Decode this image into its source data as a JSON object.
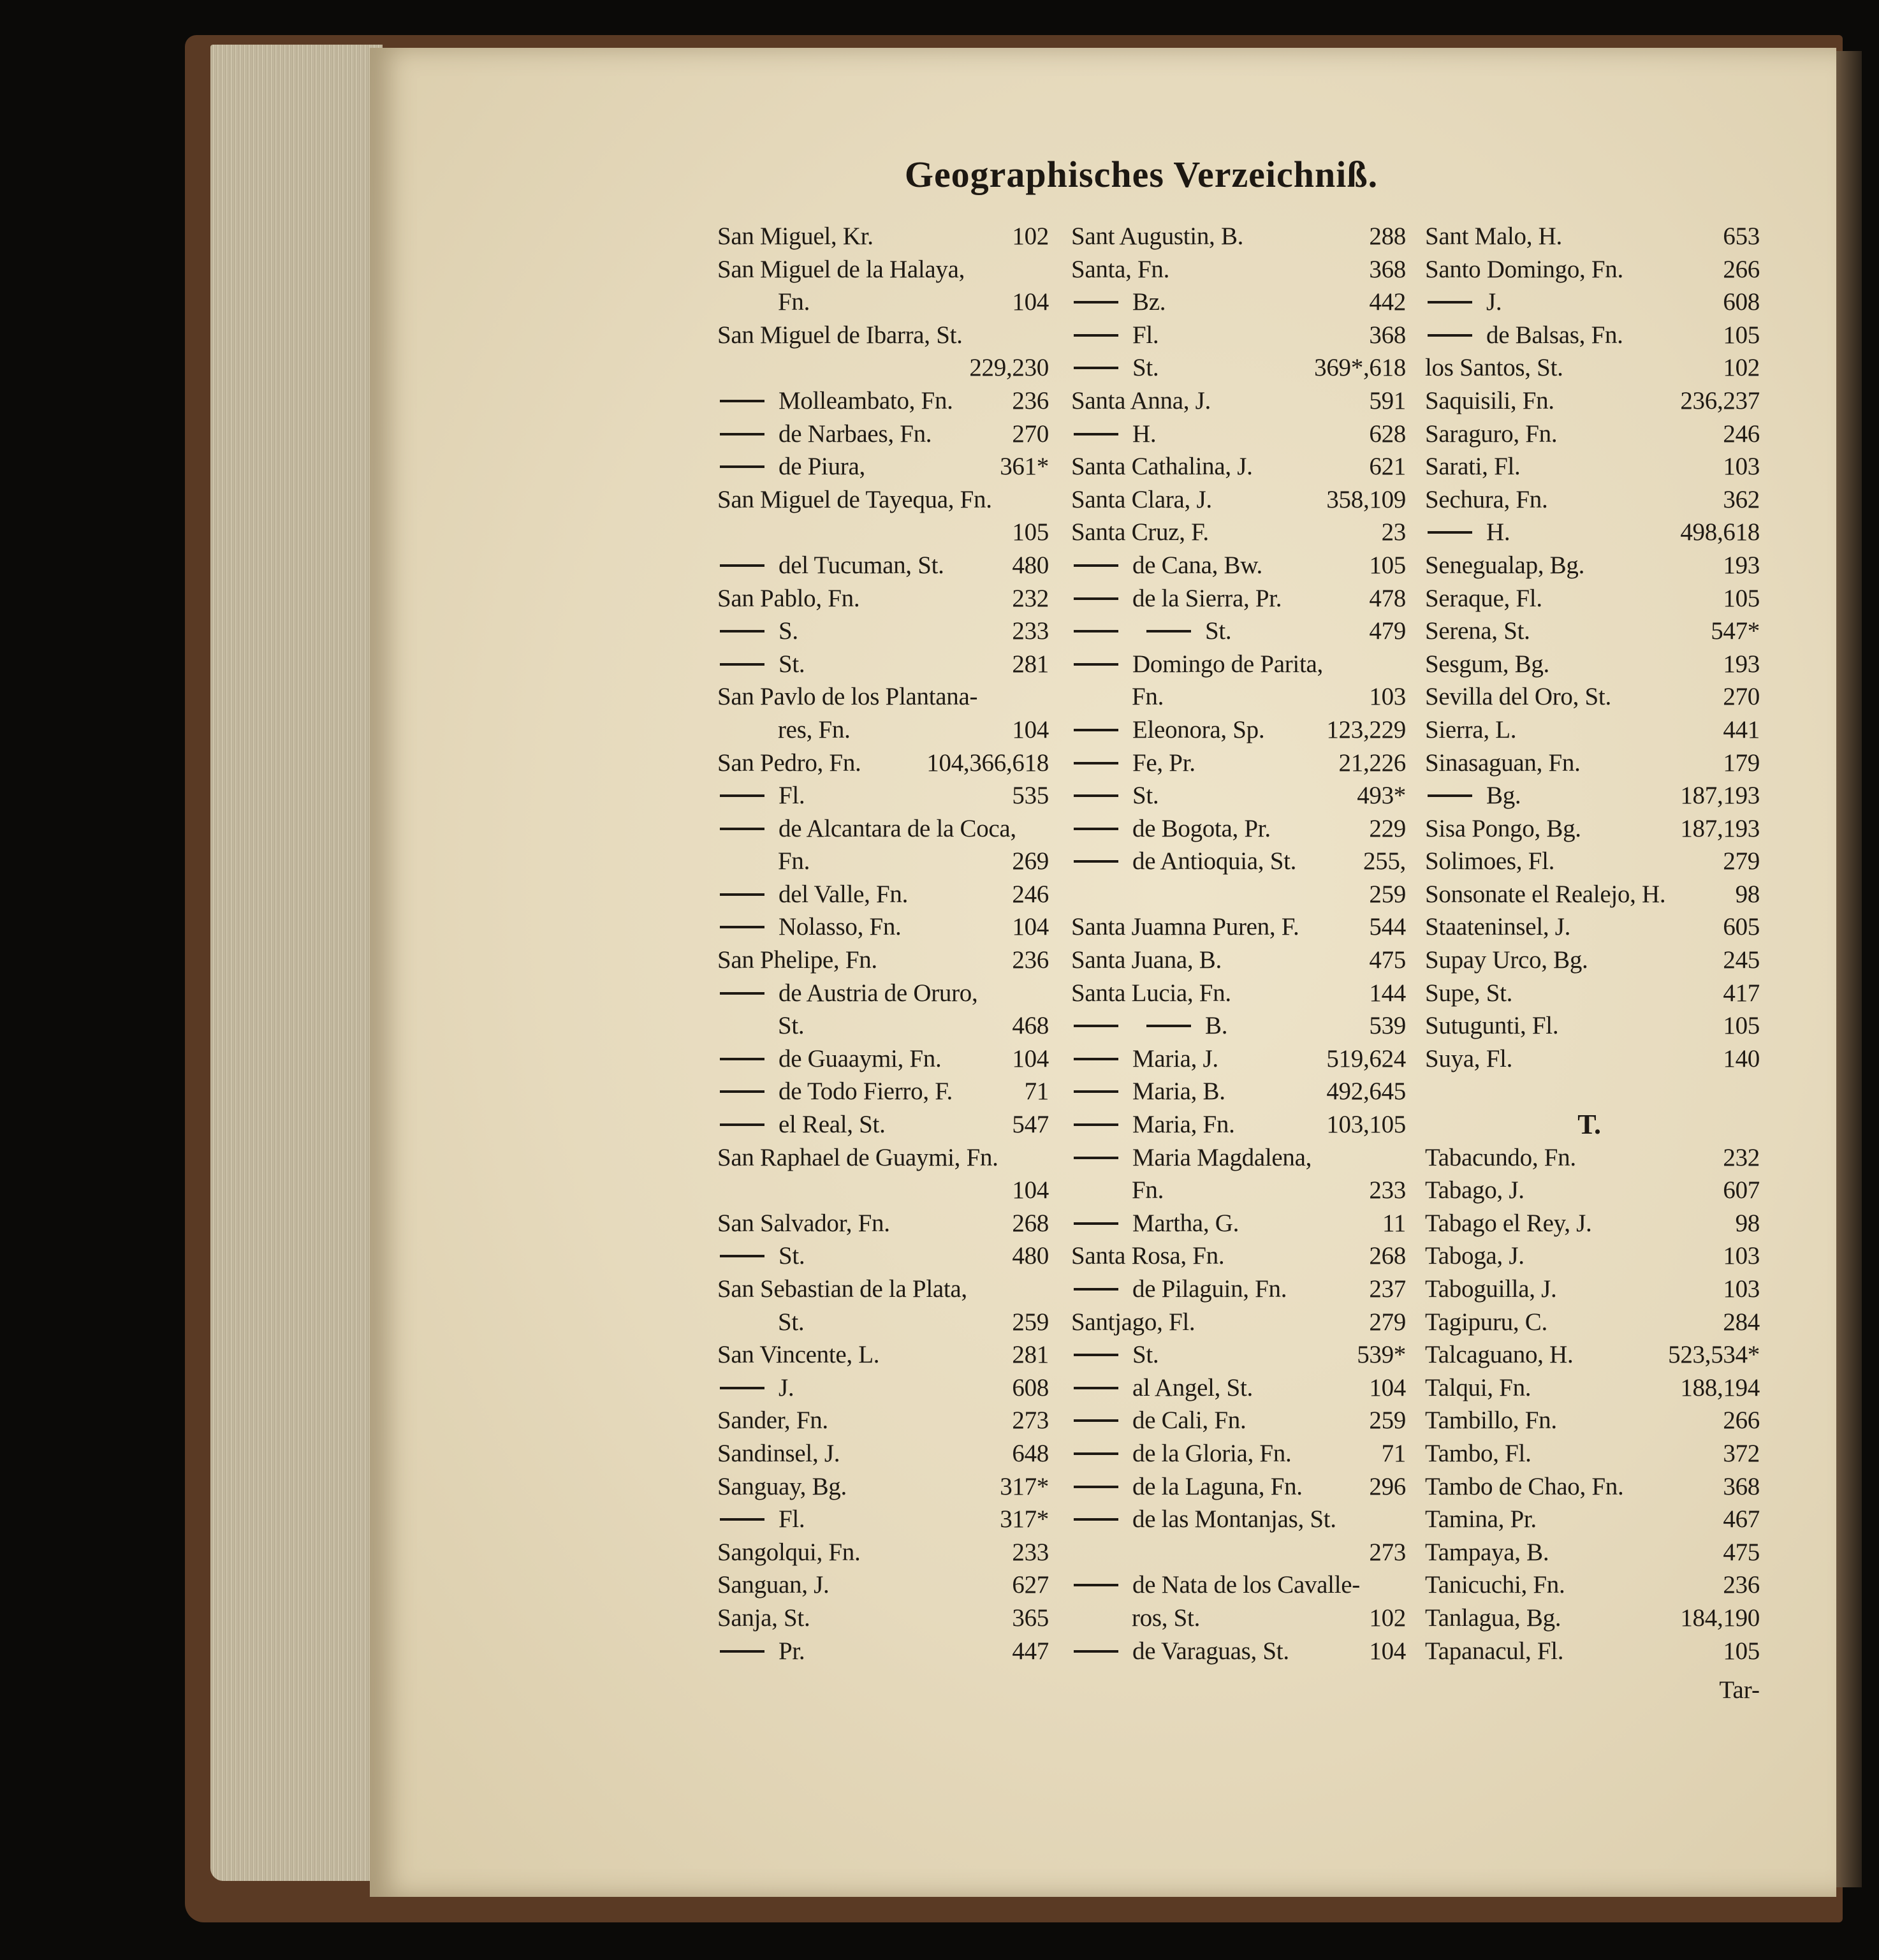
{
  "header": {
    "title": "Geographisches Verzeichniß."
  },
  "columns": [
    {
      "rows": [
        {
          "t": "San Miguel, Kr.",
          "p": "102"
        },
        {
          "t": "San Miguel de la Halaya,",
          "p": ""
        },
        {
          "c": 1,
          "t": "Fn.",
          "p": "104"
        },
        {
          "t": "San Miguel de Ibarra, St.",
          "p": ""
        },
        {
          "c": 1,
          "t": "",
          "p": "229,230"
        },
        {
          "d": 1,
          "t": "Molleambato, Fn.",
          "p": "236"
        },
        {
          "d": 1,
          "t": "de Narbaes, Fn.",
          "p": "270"
        },
        {
          "d": 1,
          "t": "de Piura,",
          "p": "361*"
        },
        {
          "t": "San Miguel de Tayequa, Fn.",
          "p": ""
        },
        {
          "c": 1,
          "t": "",
          "p": "105"
        },
        {
          "d": 1,
          "t": "del Tucuman, St.",
          "p": "480"
        },
        {
          "t": "San Pablo, Fn.",
          "p": "232"
        },
        {
          "d": 1,
          "t": "S.",
          "p": "233"
        },
        {
          "d": 1,
          "t": "St.",
          "p": "281"
        },
        {
          "t": "San Pavlo de los Plantana-",
          "p": ""
        },
        {
          "c": 1,
          "t": "res, Fn.",
          "p": "104"
        },
        {
          "t": "San Pedro, Fn.",
          "p": "104,366,618"
        },
        {
          "d": 1,
          "t": "Fl.",
          "p": "535"
        },
        {
          "d": 1,
          "t": "de Alcantara de la Coca,",
          "p": ""
        },
        {
          "c": 1,
          "t": "Fn.",
          "p": "269"
        },
        {
          "d": 1,
          "t": "del Valle, Fn.",
          "p": "246"
        },
        {
          "d": 1,
          "t": "Nolasso, Fn.",
          "p": "104"
        },
        {
          "t": "San Phelipe, Fn.",
          "p": "236"
        },
        {
          "d": 1,
          "t": "de Austria de Oruro,",
          "p": ""
        },
        {
          "c": 1,
          "t": "St.",
          "p": "468"
        },
        {
          "d": 1,
          "t": "de Guaaymi, Fn.",
          "p": "104"
        },
        {
          "d": 1,
          "t": "de Todo Fierro, F.",
          "p": "71"
        },
        {
          "d": 1,
          "t": "el Real, St.",
          "p": "547"
        },
        {
          "t": "San Raphael de Guaymi, Fn.",
          "p": ""
        },
        {
          "c": 1,
          "t": "",
          "p": "104"
        },
        {
          "t": "San Salvador, Fn.",
          "p": "268"
        },
        {
          "d": 1,
          "t": "St.",
          "p": "480"
        },
        {
          "t": "San Sebastian de la Plata,",
          "p": ""
        },
        {
          "c": 1,
          "t": "St.",
          "p": "259"
        },
        {
          "t": "San Vincente, L.",
          "p": "281"
        },
        {
          "d": 1,
          "t": "J.",
          "p": "608"
        },
        {
          "t": "Sander, Fn.",
          "p": "273"
        },
        {
          "t": "Sandinsel, J.",
          "p": "648"
        },
        {
          "t": "Sanguay, Bg.",
          "p": "317*"
        },
        {
          "d": 1,
          "t": "Fl.",
          "p": "317*"
        },
        {
          "t": "Sangolqui, Fn.",
          "p": "233"
        },
        {
          "t": "Sanguan, J.",
          "p": "627"
        },
        {
          "t": "Sanja, St.",
          "p": "365"
        },
        {
          "d": 1,
          "t": "Pr.",
          "p": "447"
        }
      ]
    },
    {
      "rows": [
        {
          "t": "Sant Augustin, B.",
          "p": "288"
        },
        {
          "t": "Santa, Fn.",
          "p": "368"
        },
        {
          "d": 1,
          "t": "Bz.",
          "p": "442"
        },
        {
          "d": 1,
          "t": "Fl.",
          "p": "368"
        },
        {
          "d": 1,
          "t": "St.",
          "p": "369*,618"
        },
        {
          "t": "Santa Anna, J.",
          "p": "591"
        },
        {
          "d": 1,
          "t": "H.",
          "p": "628"
        },
        {
          "t": "Santa Cathalina, J.",
          "p": "621"
        },
        {
          "t": "Santa Clara, J.",
          "p": "358,109"
        },
        {
          "t": "Santa Cruz, F.",
          "p": "23"
        },
        {
          "d": 1,
          "t": "de Cana, Bw.",
          "p": "105"
        },
        {
          "d": 1,
          "t": "de la Sierra, Pr.",
          "p": "478"
        },
        {
          "d": 2,
          "t": "St.",
          "p": "479"
        },
        {
          "d": 1,
          "t": "Domingo de Parita,",
          "p": ""
        },
        {
          "c": 1,
          "t": "Fn.",
          "p": "103"
        },
        {
          "d": 1,
          "t": "Eleonora, Sp.",
          "p": "123,229"
        },
        {
          "d": 1,
          "t": "Fe, Pr.",
          "p": "21,226"
        },
        {
          "d": 1,
          "t": "St.",
          "p": "493*"
        },
        {
          "d": 1,
          "t": "de Bogota, Pr.",
          "p": "229"
        },
        {
          "d": 1,
          "t": "de Antioquia, St.",
          "p": "255,"
        },
        {
          "c": 1,
          "t": "",
          "p": "259"
        },
        {
          "t": "Santa Juamna Puren, F.",
          "p": "544"
        },
        {
          "t": "Santa Juana, B.",
          "p": "475"
        },
        {
          "t": "Santa Lucia, Fn.",
          "p": "144"
        },
        {
          "d": 2,
          "t": "B.",
          "p": "539"
        },
        {
          "d": 1,
          "t": "Maria, J.",
          "p": "519,624"
        },
        {
          "d": 1,
          "t": "Maria, B.",
          "p": "492,645"
        },
        {
          "d": 1,
          "t": "Maria, Fn.",
          "p": "103,105"
        },
        {
          "d": 1,
          "t": "Maria Magdalena,",
          "p": ""
        },
        {
          "c": 1,
          "t": "Fn.",
          "p": "233"
        },
        {
          "d": 1,
          "t": "Martha, G.",
          "p": "11"
        },
        {
          "t": "Santa Rosa, Fn.",
          "p": "268"
        },
        {
          "d": 1,
          "t": "de Pilaguin, Fn.",
          "p": "237"
        },
        {
          "t": "Santjago, Fl.",
          "p": "279"
        },
        {
          "d": 1,
          "t": "St.",
          "p": "539*"
        },
        {
          "d": 1,
          "t": "al Angel, St.",
          "p": "104"
        },
        {
          "d": 1,
          "t": "de Cali, Fn.",
          "p": "259"
        },
        {
          "d": 1,
          "t": "de la Gloria, Fn.",
          "p": "71"
        },
        {
          "d": 1,
          "t": "de la Laguna, Fn.",
          "p": "296"
        },
        {
          "d": 1,
          "t": "de las Montanjas, St.",
          "p": ""
        },
        {
          "c": 1,
          "t": "",
          "p": "273"
        },
        {
          "d": 1,
          "t": "de Nata de los Cavalle-",
          "p": ""
        },
        {
          "c": 1,
          "t": "ros, St.",
          "p": "102"
        },
        {
          "d": 1,
          "t": "de Varaguas, St.",
          "p": "104"
        }
      ]
    },
    {
      "rows": [
        {
          "t": "Sant Malo, H.",
          "p": "653"
        },
        {
          "t": "Santo Domingo, Fn.",
          "p": "266"
        },
        {
          "d": 1,
          "t": "J.",
          "p": "608"
        },
        {
          "d": 1,
          "t": "de Balsas, Fn.",
          "p": "105"
        },
        {
          "t": "los Santos, St.",
          "p": "102"
        },
        {
          "t": "Saquisili, Fn.",
          "p": "236,237"
        },
        {
          "t": "Saraguro, Fn.",
          "p": "246"
        },
        {
          "t": "Sarati, Fl.",
          "p": "103"
        },
        {
          "t": "Sechura, Fn.",
          "p": "362"
        },
        {
          "d": 1,
          "t": "H.",
          "p": "498,618"
        },
        {
          "t": "Senegualap, Bg.",
          "p": "193"
        },
        {
          "t": "Seraque, Fl.",
          "p": "105"
        },
        {
          "t": "Serena, St.",
          "p": "547*"
        },
        {
          "t": "Sesgum, Bg.",
          "p": "193"
        },
        {
          "t": "Sevilla del Oro, St.",
          "p": "270"
        },
        {
          "t": "Sierra, L.",
          "p": "441"
        },
        {
          "t": "Sinasaguan, Fn.",
          "p": "179"
        },
        {
          "d": 1,
          "t": "Bg.",
          "p": "187,193"
        },
        {
          "t": "Sisa Pongo, Bg.",
          "p": "187,193"
        },
        {
          "t": "Solimoes, Fl.",
          "p": "279"
        },
        {
          "t": "Sonsonate el Realejo, H.",
          "p": "98"
        },
        {
          "t": "Staateninsel, J.",
          "p": "605"
        },
        {
          "t": "Supay Urco, Bg.",
          "p": "245"
        },
        {
          "t": "Supe, St.",
          "p": "417"
        },
        {
          "t": "Sutugunti, Fl.",
          "p": "105"
        },
        {
          "t": "Suya, Fl.",
          "p": "140"
        },
        {
          "t": "",
          "p": ""
        },
        {
          "h": 1,
          "t": "T.",
          "p": ""
        },
        {
          "t": "Tabacundo, Fn.",
          "p": "232"
        },
        {
          "t": "Tabago, J.",
          "p": "607"
        },
        {
          "t": "Tabago el Rey, J.",
          "p": "98"
        },
        {
          "t": "Taboga, J.",
          "p": "103"
        },
        {
          "t": "Taboguilla, J.",
          "p": "103"
        },
        {
          "t": "Tagipuru, C.",
          "p": "284"
        },
        {
          "t": "Talcaguano, H.",
          "p": "523,534*"
        },
        {
          "t": "Talqui, Fn.",
          "p": "188,194"
        },
        {
          "t": "Tambillo, Fn.",
          "p": "266"
        },
        {
          "t": "Tambo, Fl.",
          "p": "372"
        },
        {
          "t": "Tambo de Chao, Fn.",
          "p": "368"
        },
        {
          "t": "Tamina, Pr.",
          "p": "467"
        },
        {
          "t": "Tampaya, B.",
          "p": "475"
        },
        {
          "t": "Tanicuchi, Fn.",
          "p": "236"
        },
        {
          "t": "Tanlagua, Bg.",
          "p": "184,190"
        },
        {
          "t": "Tapanacul, Fl.",
          "p": "105"
        }
      ]
    }
  ],
  "catchword": "Tar-"
}
